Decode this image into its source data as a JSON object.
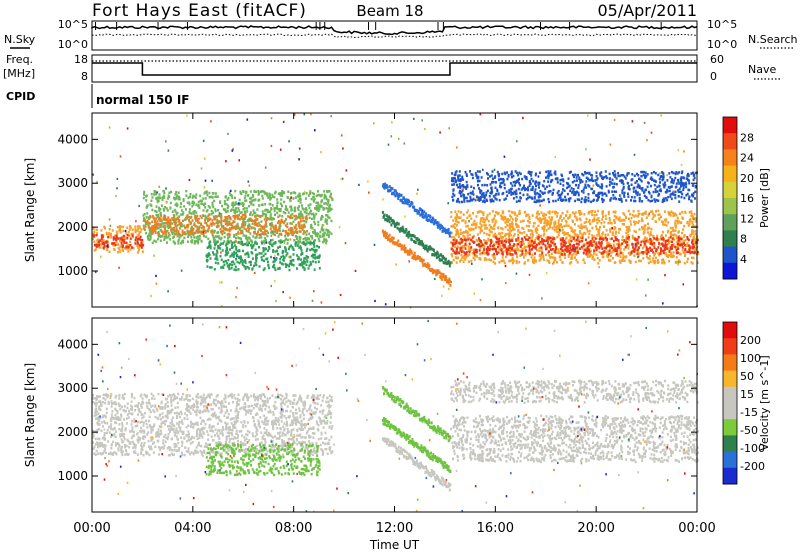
{
  "header": {
    "station": "Fort Hays East (fitACF)",
    "beam": "Beam 18",
    "date": "05/Apr/2011"
  },
  "labels": {
    "nsky": "N.Sky",
    "nsearch": "N.Search",
    "freq_line1": "Freq.",
    "freq_line2": "[MHz]",
    "nave": "Nave",
    "cpid": "CPID",
    "cpid_value": "normal 150 IF",
    "time_axis": "Time UT"
  },
  "noise_ticks_left": [
    "10^5",
    "10^0"
  ],
  "noise_ticks_right": [
    "10^5",
    "10^0"
  ],
  "freq_ticks_left": [
    "18",
    "8"
  ],
  "nave_ticks_right": [
    "60",
    "0"
  ],
  "time_ticks": [
    "00:00",
    "04:00",
    "08:00",
    "12:00",
    "16:00",
    "20:00",
    "00:00"
  ],
  "chart_data": [
    {
      "type": "heatmap",
      "title": "Power",
      "ylabel": "Slant Range [km]",
      "xlabel": "Time UT",
      "ylim": [
        180,
        4600
      ],
      "yticks": [
        "1000",
        "2000",
        "3000",
        "4000"
      ],
      "colorbar": {
        "label": "Power [dB]",
        "ticks": [
          "28",
          "24",
          "20",
          "16",
          "12",
          "8",
          "4"
        ],
        "colors": [
          "#0b16d6",
          "#1f55c9",
          "#2f7f4f",
          "#5fa05a",
          "#9cc34a",
          "#d8d23a",
          "#f6b21a",
          "#f7821c",
          "#f04a18",
          "#e10d0d"
        ]
      },
      "bands": [
        {
          "name": "main-echo",
          "t0": 0,
          "t1": 2.0,
          "r0": 1450,
          "r1": 2050,
          "color": "#f6a12a"
        },
        {
          "name": "main-echo-core",
          "t0": 0,
          "t1": 2.0,
          "r0": 1550,
          "r1": 1850,
          "color": "#e9361e"
        },
        {
          "name": "morning-band",
          "t0": 2.0,
          "t1": 9.5,
          "r0": 1650,
          "r1": 2850,
          "color": "#6eb65a"
        },
        {
          "name": "morning-band-core",
          "t0": 2.0,
          "t1": 8.5,
          "r0": 1850,
          "r1": 2300,
          "color": "#f07d20"
        },
        {
          "name": "low-band",
          "t0": 4.5,
          "t1": 9.0,
          "r0": 1050,
          "r1": 1700,
          "color": "#2fa05a"
        },
        {
          "name": "upper-band",
          "t0": 14.2,
          "t1": 24,
          "r0": 2600,
          "r1": 3300,
          "color": "#1f55c9"
        },
        {
          "name": "afternoon-band",
          "t0": 14.2,
          "t1": 24,
          "r0": 1200,
          "r1": 2400,
          "color": "#f6a12a"
        },
        {
          "name": "afternoon-core",
          "t0": 14.2,
          "t1": 24,
          "r0": 1400,
          "r1": 1800,
          "color": "#e9361e"
        }
      ]
    },
    {
      "type": "heatmap",
      "title": "Velocity",
      "ylabel": "Slant Range [km]",
      "xlabel": "Time UT",
      "ylim": [
        180,
        4600
      ],
      "yticks": [
        "1000",
        "2000",
        "3000",
        "4000"
      ],
      "colorbar": {
        "label": "Velocity [m s^-1]",
        "ticks": [
          "200",
          "100",
          "50",
          "15",
          "-15",
          "-50",
          "-100",
          "-200"
        ],
        "colors": [
          "#1a2bd0",
          "#2b6fd9",
          "#2f7f4f",
          "#7ccb3a",
          "#c7c7c0",
          "#c7c7c0",
          "#f8b62e",
          "#f57b19",
          "#f03d18",
          "#e10d0d"
        ]
      },
      "bands": [
        {
          "name": "ground-scatter-morning",
          "t0": 0,
          "t1": 9.5,
          "r0": 1500,
          "r1": 2900,
          "color": "#c7c7c0"
        },
        {
          "name": "ground-scatter-afternoon",
          "t0": 14.2,
          "t1": 24,
          "r0": 1350,
          "r1": 2400,
          "color": "#c7c7c0"
        },
        {
          "name": "ground-scatter-upper",
          "t0": 14.2,
          "t1": 24,
          "r0": 2700,
          "r1": 3200,
          "color": "#c7c7c0"
        },
        {
          "name": "ionospheric-green",
          "t0": 4.5,
          "t1": 9.0,
          "r0": 1050,
          "r1": 1750,
          "color": "#6fc340"
        }
      ]
    }
  ]
}
